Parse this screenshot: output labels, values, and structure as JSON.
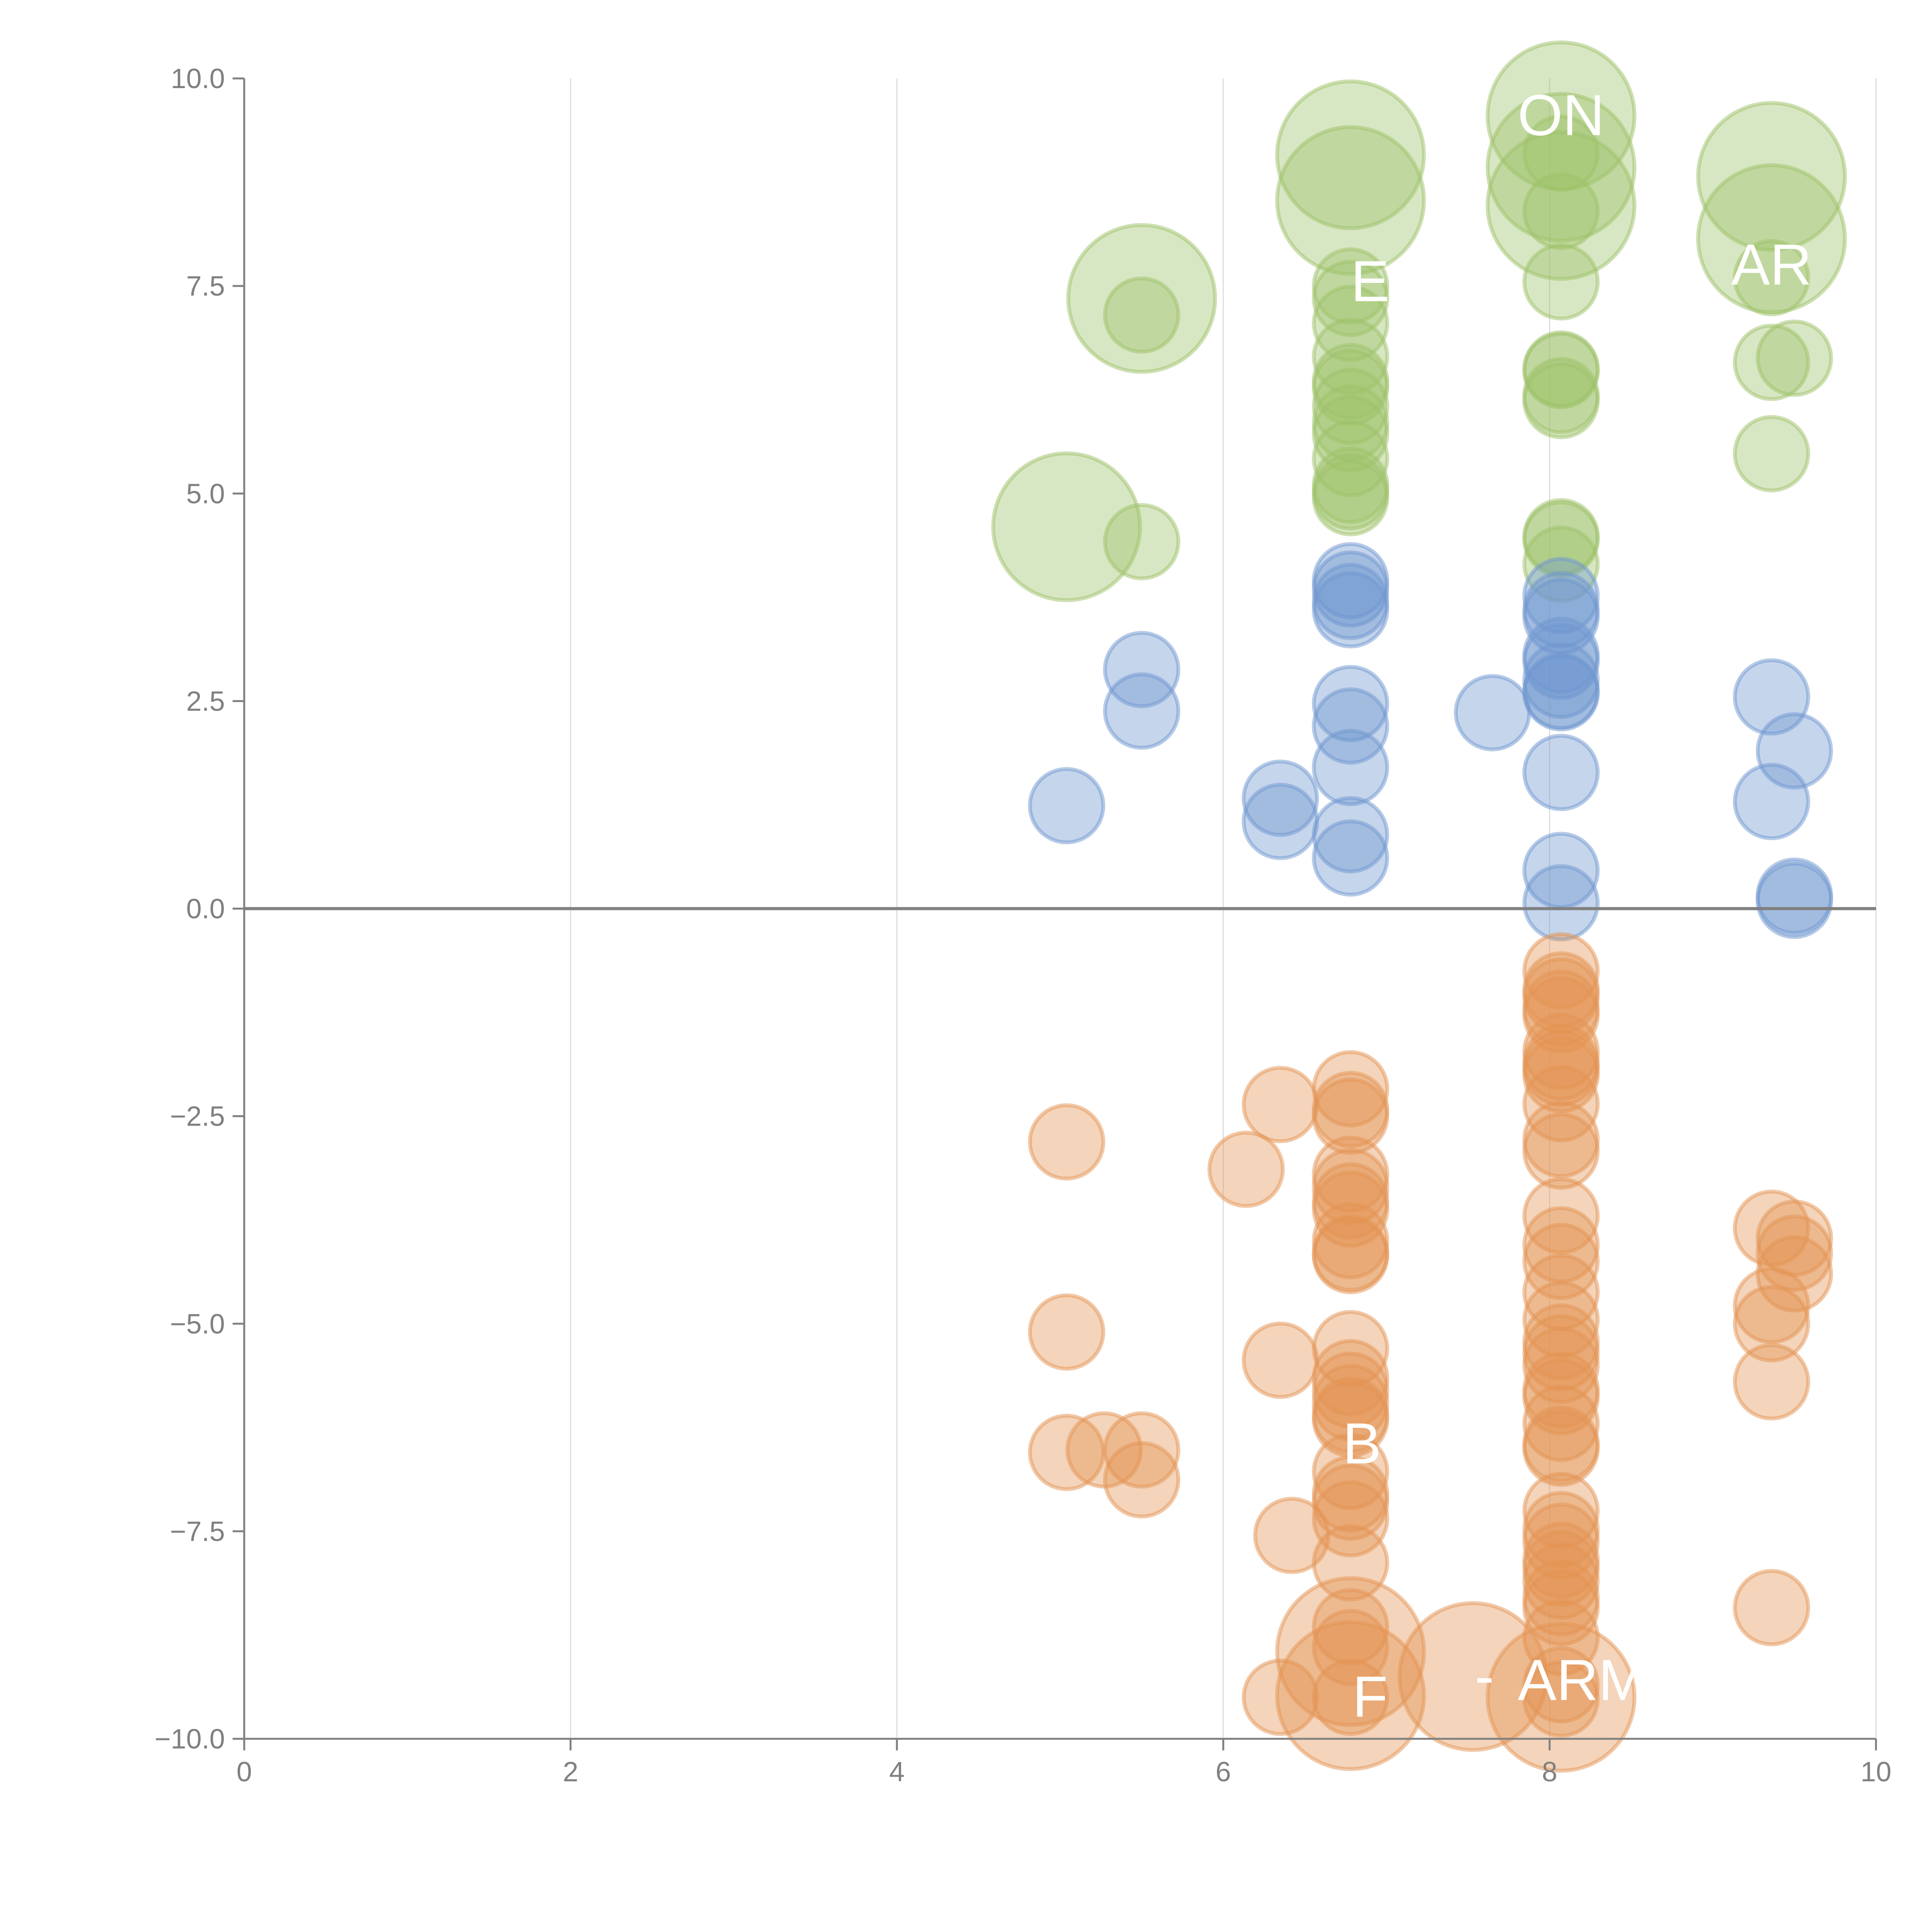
{
  "chart_data": {
    "type": "scatter",
    "title": "",
    "xlabel": "",
    "ylabel": "",
    "xlim": [
      0,
      10
    ],
    "ylim": [
      -10,
      10
    ],
    "x_ticks": [
      "0",
      "2",
      "4",
      "6",
      "8",
      "10"
    ],
    "y_ticks": [
      "10.0",
      "7.5",
      "5.0",
      "2.5",
      "0.0",
      "−2.5",
      "−5.0",
      "−7.5",
      "−10.0"
    ],
    "grid": "vertical",
    "zero_line": true,
    "legend": "none",
    "series": [
      {
        "name": "green",
        "color": "#9dc26a",
        "points": [
          {
            "x": 5.04,
            "y": 4.6,
            "size": 2
          },
          {
            "x": 5.5,
            "y": 7.35,
            "size": 2
          },
          {
            "x": 5.5,
            "y": 7.15,
            "size": 1
          },
          {
            "x": 5.5,
            "y": 4.42,
            "size": 1
          },
          {
            "x": 6.78,
            "y": 9.08,
            "size": 2
          },
          {
            "x": 6.78,
            "y": 8.53,
            "size": 2
          },
          {
            "x": 6.78,
            "y": 7.5,
            "size": 1
          },
          {
            "x": 6.78,
            "y": 7.35,
            "size": 1
          },
          {
            "x": 6.78,
            "y": 7.05,
            "size": 1
          },
          {
            "x": 6.78,
            "y": 6.65,
            "size": 1
          },
          {
            "x": 6.78,
            "y": 6.35,
            "size": 1
          },
          {
            "x": 6.78,
            "y": 6.28,
            "size": 1
          },
          {
            "x": 6.78,
            "y": 6.05,
            "size": 1
          },
          {
            "x": 6.78,
            "y": 5.85,
            "size": 1
          },
          {
            "x": 6.78,
            "y": 5.72,
            "size": 1
          },
          {
            "x": 6.78,
            "y": 5.42,
            "size": 1
          },
          {
            "x": 6.78,
            "y": 5.1,
            "size": 1
          },
          {
            "x": 6.78,
            "y": 5.02,
            "size": 1
          },
          {
            "x": 6.78,
            "y": 4.95,
            "size": 1
          },
          {
            "x": 8.07,
            "y": 9.55,
            "size": 2
          },
          {
            "x": 8.07,
            "y": 9.1,
            "size": 1
          },
          {
            "x": 8.07,
            "y": 8.93,
            "size": 2
          },
          {
            "x": 8.07,
            "y": 8.47,
            "size": 2
          },
          {
            "x": 8.07,
            "y": 8.4,
            "size": 1
          },
          {
            "x": 8.07,
            "y": 7.55,
            "size": 1
          },
          {
            "x": 8.07,
            "y": 6.5,
            "size": 1
          },
          {
            "x": 8.07,
            "y": 6.48,
            "size": 1
          },
          {
            "x": 8.07,
            "y": 6.18,
            "size": 1
          },
          {
            "x": 8.07,
            "y": 6.12,
            "size": 1
          },
          {
            "x": 8.07,
            "y": 4.48,
            "size": 1
          },
          {
            "x": 8.07,
            "y": 4.45,
            "size": 1
          },
          {
            "x": 8.07,
            "y": 4.15,
            "size": 1
          },
          {
            "x": 9.36,
            "y": 8.82,
            "size": 2
          },
          {
            "x": 9.36,
            "y": 8.07,
            "size": 2
          },
          {
            "x": 9.36,
            "y": 7.6,
            "size": 1
          },
          {
            "x": 9.36,
            "y": 6.58,
            "size": 1
          },
          {
            "x": 9.5,
            "y": 6.63,
            "size": 1
          },
          {
            "x": 9.36,
            "y": 5.48,
            "size": 1
          }
        ]
      },
      {
        "name": "blue",
        "color": "#6f97d0",
        "points": [
          {
            "x": 5.04,
            "y": 1.24,
            "size": 1
          },
          {
            "x": 5.5,
            "y": 2.88,
            "size": 1
          },
          {
            "x": 5.5,
            "y": 2.38,
            "size": 1
          },
          {
            "x": 6.35,
            "y": 1.33,
            "size": 1
          },
          {
            "x": 6.35,
            "y": 1.05,
            "size": 1
          },
          {
            "x": 6.78,
            "y": 3.95,
            "size": 1
          },
          {
            "x": 6.78,
            "y": 3.85,
            "size": 1
          },
          {
            "x": 6.78,
            "y": 3.7,
            "size": 1
          },
          {
            "x": 6.78,
            "y": 3.6,
            "size": 1
          },
          {
            "x": 6.78,
            "y": 2.47,
            "size": 1
          },
          {
            "x": 6.78,
            "y": 2.2,
            "size": 1
          },
          {
            "x": 6.78,
            "y": 1.7,
            "size": 1
          },
          {
            "x": 6.78,
            "y": 0.89,
            "size": 1
          },
          {
            "x": 6.78,
            "y": 0.61,
            "size": 1
          },
          {
            "x": 7.65,
            "y": 2.36,
            "size": 1
          },
          {
            "x": 8.07,
            "y": 3.77,
            "size": 1
          },
          {
            "x": 8.07,
            "y": 3.6,
            "size": 1
          },
          {
            "x": 8.07,
            "y": 3.52,
            "size": 1
          },
          {
            "x": 8.07,
            "y": 3.05,
            "size": 1
          },
          {
            "x": 8.07,
            "y": 2.98,
            "size": 1
          },
          {
            "x": 8.07,
            "y": 2.75,
            "size": 1
          },
          {
            "x": 8.07,
            "y": 2.62,
            "size": 1
          },
          {
            "x": 8.07,
            "y": 2.6,
            "size": 1
          },
          {
            "x": 8.07,
            "y": 1.64,
            "size": 1
          },
          {
            "x": 8.07,
            "y": 0.46,
            "size": 1
          },
          {
            "x": 8.07,
            "y": 0.07,
            "size": 1
          },
          {
            "x": 9.36,
            "y": 2.55,
            "size": 1
          },
          {
            "x": 9.5,
            "y": 1.9,
            "size": 1
          },
          {
            "x": 9.36,
            "y": 1.29,
            "size": 1
          },
          {
            "x": 9.5,
            "y": 0.15,
            "size": 1
          },
          {
            "x": 9.5,
            "y": 0.1,
            "size": 1
          }
        ]
      },
      {
        "name": "orange",
        "color": "#e39453",
        "points": [
          {
            "x": 5.04,
            "y": -2.81,
            "size": 1
          },
          {
            "x": 5.04,
            "y": -5.1,
            "size": 1
          },
          {
            "x": 5.04,
            "y": -6.55,
            "size": 1
          },
          {
            "x": 5.27,
            "y": -6.52,
            "size": 1
          },
          {
            "x": 5.5,
            "y": -6.52,
            "size": 1
          },
          {
            "x": 5.5,
            "y": -6.88,
            "size": 1
          },
          {
            "x": 6.14,
            "y": -3.14,
            "size": 1
          },
          {
            "x": 6.35,
            "y": -2.36,
            "size": 1
          },
          {
            "x": 6.35,
            "y": -5.44,
            "size": 1
          },
          {
            "x": 6.42,
            "y": -7.55,
            "size": 1
          },
          {
            "x": 6.35,
            "y": -9.5,
            "size": 1
          },
          {
            "x": 6.78,
            "y": -2.17,
            "size": 1
          },
          {
            "x": 6.78,
            "y": -2.42,
            "size": 1
          },
          {
            "x": 6.78,
            "y": -2.5,
            "size": 1
          },
          {
            "x": 6.78,
            "y": -3.2,
            "size": 1
          },
          {
            "x": 6.78,
            "y": -3.35,
            "size": 1
          },
          {
            "x": 6.78,
            "y": -3.52,
            "size": 1
          },
          {
            "x": 6.78,
            "y": -3.62,
            "size": 1
          },
          {
            "x": 6.78,
            "y": -4.0,
            "size": 1
          },
          {
            "x": 6.78,
            "y": -4.15,
            "size": 1
          },
          {
            "x": 6.78,
            "y": -4.18,
            "size": 1
          },
          {
            "x": 6.78,
            "y": -5.3,
            "size": 1
          },
          {
            "x": 6.78,
            "y": -5.65,
            "size": 1
          },
          {
            "x": 6.78,
            "y": -5.8,
            "size": 1
          },
          {
            "x": 6.78,
            "y": -5.95,
            "size": 1
          },
          {
            "x": 6.78,
            "y": -6.1,
            "size": 1
          },
          {
            "x": 6.78,
            "y": -6.15,
            "size": 1
          },
          {
            "x": 6.78,
            "y": -6.78,
            "size": 1
          },
          {
            "x": 6.78,
            "y": -7.05,
            "size": 1
          },
          {
            "x": 6.78,
            "y": -7.15,
            "size": 1
          },
          {
            "x": 6.78,
            "y": -7.35,
            "size": 1
          },
          {
            "x": 6.78,
            "y": -7.88,
            "size": 1
          },
          {
            "x": 6.78,
            "y": -8.65,
            "size": 1
          },
          {
            "x": 6.78,
            "y": -8.95,
            "size": 2
          },
          {
            "x": 6.78,
            "y": -8.9,
            "size": 1
          },
          {
            "x": 6.78,
            "y": -9.48,
            "size": 2
          },
          {
            "x": 6.78,
            "y": -9.5,
            "size": 1
          },
          {
            "x": 7.53,
            "y": -9.25,
            "size": 2
          },
          {
            "x": 8.07,
            "y": -0.75,
            "size": 1
          },
          {
            "x": 8.07,
            "y": -0.98,
            "size": 1
          },
          {
            "x": 8.07,
            "y": -1.05,
            "size": 1
          },
          {
            "x": 8.07,
            "y": -1.2,
            "size": 1
          },
          {
            "x": 8.07,
            "y": -1.28,
            "size": 1
          },
          {
            "x": 8.07,
            "y": -1.72,
            "size": 1
          },
          {
            "x": 8.07,
            "y": -1.85,
            "size": 1
          },
          {
            "x": 8.07,
            "y": -1.92,
            "size": 1
          },
          {
            "x": 8.07,
            "y": -2.0,
            "size": 1
          },
          {
            "x": 8.07,
            "y": -2.35,
            "size": 1
          },
          {
            "x": 8.07,
            "y": -2.78,
            "size": 1
          },
          {
            "x": 8.07,
            "y": -2.92,
            "size": 1
          },
          {
            "x": 8.07,
            "y": -3.7,
            "size": 1
          },
          {
            "x": 8.07,
            "y": -4.05,
            "size": 1
          },
          {
            "x": 8.07,
            "y": -4.25,
            "size": 1
          },
          {
            "x": 8.07,
            "y": -4.62,
            "size": 1
          },
          {
            "x": 8.07,
            "y": -4.95,
            "size": 1
          },
          {
            "x": 8.07,
            "y": -5.22,
            "size": 1
          },
          {
            "x": 8.07,
            "y": -5.35,
            "size": 1
          },
          {
            "x": 8.07,
            "y": -5.5,
            "size": 1
          },
          {
            "x": 8.07,
            "y": -5.8,
            "size": 1
          },
          {
            "x": 8.07,
            "y": -5.88,
            "size": 1
          },
          {
            "x": 8.07,
            "y": -6.2,
            "size": 1
          },
          {
            "x": 8.07,
            "y": -6.45,
            "size": 1
          },
          {
            "x": 8.07,
            "y": -6.5,
            "size": 1
          },
          {
            "x": 8.07,
            "y": -7.25,
            "size": 1
          },
          {
            "x": 8.07,
            "y": -7.48,
            "size": 1
          },
          {
            "x": 8.07,
            "y": -7.62,
            "size": 1
          },
          {
            "x": 8.07,
            "y": -7.85,
            "size": 1
          },
          {
            "x": 8.07,
            "y": -7.95,
            "size": 1
          },
          {
            "x": 8.07,
            "y": -8.1,
            "size": 1
          },
          {
            "x": 8.07,
            "y": -8.3,
            "size": 1
          },
          {
            "x": 8.07,
            "y": -8.42,
            "size": 1
          },
          {
            "x": 8.07,
            "y": -8.78,
            "size": 1
          },
          {
            "x": 8.07,
            "y": -9.35,
            "size": 1
          },
          {
            "x": 8.07,
            "y": -9.5,
            "size": 2
          },
          {
            "x": 8.07,
            "y": -9.52,
            "size": 1
          },
          {
            "x": 9.36,
            "y": -3.85,
            "size": 1
          },
          {
            "x": 9.5,
            "y": -3.97,
            "size": 1
          },
          {
            "x": 9.5,
            "y": -4.15,
            "size": 1
          },
          {
            "x": 9.5,
            "y": -4.4,
            "size": 1
          },
          {
            "x": 9.36,
            "y": -4.78,
            "size": 1
          },
          {
            "x": 9.36,
            "y": -5.0,
            "size": 1
          },
          {
            "x": 9.36,
            "y": -5.7,
            "size": 1
          },
          {
            "x": 9.36,
            "y": -8.42,
            "size": 1
          }
        ]
      }
    ],
    "annotations": [
      {
        "text": "ON",
        "x": 8.07,
        "y": 9.55,
        "color": "#ffffff"
      },
      {
        "text": "AR",
        "x": 9.36,
        "y": 7.75,
        "color": "#ffffff"
      },
      {
        "text": "E",
        "x": 6.9,
        "y": 7.55,
        "color": "#ffffff"
      },
      {
        "text": "B",
        "x": 6.85,
        "y": -6.45,
        "color": "#ffffff"
      },
      {
        "text": "F",
        "x": 6.9,
        "y": -9.5,
        "color": "#ffffff"
      },
      {
        "text": "-",
        "x": 7.6,
        "y": -9.25,
        "color": "#ffffff"
      },
      {
        "text": "ARM",
        "x": 8.2,
        "y": -9.3,
        "color": "#ffffff"
      }
    ]
  }
}
